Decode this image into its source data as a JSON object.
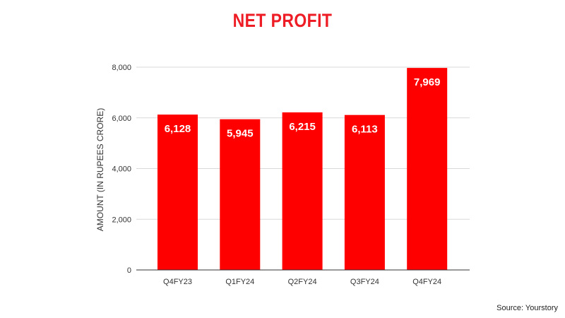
{
  "chart_data": {
    "type": "bar",
    "title": "NET PROFIT",
    "xlabel": "",
    "ylabel": "AMOUNT (IN RUPEES CRORE)",
    "categories": [
      "Q4FY23",
      "Q1FY24",
      "Q2FY24",
      "Q3FY24",
      "Q4FY24"
    ],
    "values": [
      6128,
      5945,
      6215,
      6113,
      7969
    ],
    "data_labels": [
      "6,128",
      "5,945",
      "6,215",
      "6,113",
      "7,969"
    ],
    "ylim": [
      0,
      8000
    ],
    "yticks": [
      0,
      2000,
      4000,
      6000,
      8000
    ],
    "ytick_labels": [
      "0",
      "2,000",
      "4,000",
      "6,000",
      "8,000"
    ],
    "grid": true,
    "bar_color": "#ff0000",
    "title_color": "#ee1c24"
  },
  "source": "Source: Yourstory"
}
